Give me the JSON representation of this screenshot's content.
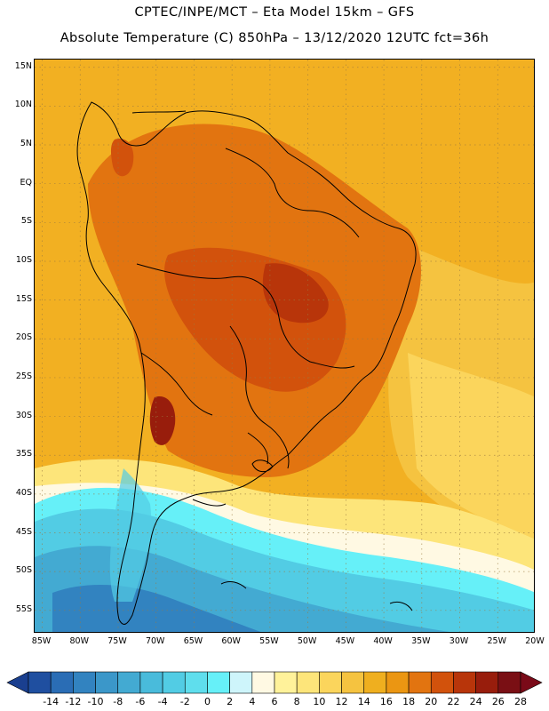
{
  "header": {
    "title_line1": "CPTEC/INPE/MCT –  Eta Model 15km – GFS",
    "title_line2": "Absolute Temperature (C) 850hPa – 13/12/2020 12UTC fct=36h"
  },
  "map": {
    "lat_range": [
      -58,
      16
    ],
    "lon_range": [
      -86,
      -20
    ],
    "lat_labels": [
      {
        "text": "15N",
        "lat": 15
      },
      {
        "text": "10N",
        "lat": 10
      },
      {
        "text": "5N",
        "lat": 5
      },
      {
        "text": "EQ",
        "lat": 0
      },
      {
        "text": "5S",
        "lat": -5
      },
      {
        "text": "10S",
        "lat": -10
      },
      {
        "text": "15S",
        "lat": -15
      },
      {
        "text": "20S",
        "lat": -20
      },
      {
        "text": "25S",
        "lat": -25
      },
      {
        "text": "30S",
        "lat": -30
      },
      {
        "text": "35S",
        "lat": -35
      },
      {
        "text": "40S",
        "lat": -40
      },
      {
        "text": "45S",
        "lat": -45
      },
      {
        "text": "50S",
        "lat": -50
      },
      {
        "text": "55S",
        "lat": -55
      }
    ],
    "lon_labels": [
      {
        "text": "85W",
        "lon": -85
      },
      {
        "text": "80W",
        "lon": -80
      },
      {
        "text": "75W",
        "lon": -75
      },
      {
        "text": "70W",
        "lon": -70
      },
      {
        "text": "65W",
        "lon": -65
      },
      {
        "text": "60W",
        "lon": -60
      },
      {
        "text": "55W",
        "lon": -55
      },
      {
        "text": "50W",
        "lon": -50
      },
      {
        "text": "45W",
        "lon": -45
      },
      {
        "text": "40W",
        "lon": -40
      },
      {
        "text": "35W",
        "lon": -35
      },
      {
        "text": "30W",
        "lon": -30
      },
      {
        "text": "25W",
        "lon": -25
      },
      {
        "text": "20W",
        "lon": -20
      }
    ],
    "grid": true
  },
  "colorbar": {
    "labels": [
      "-14",
      "-12",
      "-10",
      "-8",
      "-6",
      "-4",
      "-2",
      "0",
      "2",
      "4",
      "6",
      "8",
      "10",
      "12",
      "14",
      "16",
      "18",
      "20",
      "22",
      "24",
      "26",
      "28"
    ],
    "under_color": "#1a3f8f",
    "over_color": "#7a0a18",
    "colors": [
      "#1f4fa0",
      "#2a6db5",
      "#3283c0",
      "#3b97c9",
      "#43aad2",
      "#49bbdb",
      "#52ccE4",
      "#5fdeed",
      "#66f0f8",
      "#cef5fb",
      "#fff9e3",
      "#fff29a",
      "#fde57a",
      "#fbd55c",
      "#f5c340",
      "#efaf1f",
      "#eb9612",
      "#e27410",
      "#d2520c",
      "#b8350a",
      "#981d0c",
      "#7a0f14"
    ]
  }
}
